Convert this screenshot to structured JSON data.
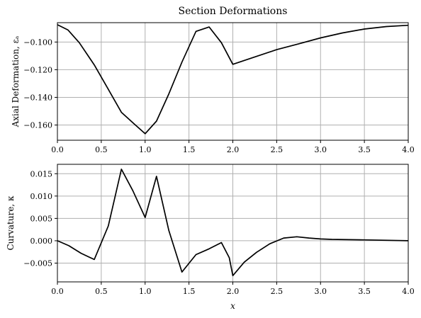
{
  "chart_data": [
    {
      "type": "line",
      "title": "Section Deformations",
      "xlabel": "",
      "ylabel": "Axial Deformation, εₐ",
      "xlim": [
        0,
        4
      ],
      "ylim": [
        -0.171,
        -0.086
      ],
      "xticks": [
        0,
        0.5,
        1,
        1.5,
        2,
        2.5,
        3,
        3.5,
        4
      ],
      "xtick_labels": [
        "0.0",
        "0.5",
        "1.0",
        "1.5",
        "2.0",
        "2.5",
        "3.0",
        "3.5",
        "4.0"
      ],
      "yticks": [
        -0.16,
        -0.14,
        -0.12,
        -0.1
      ],
      "ytick_labels": [
        "−0.160",
        "−0.140",
        "−0.120",
        "−0.100"
      ],
      "grid": true,
      "line_color": "#000000",
      "x": [
        0,
        0.12,
        0.25,
        0.42,
        0.58,
        0.73,
        0.88,
        1.0,
        1.13,
        1.27,
        1.42,
        1.58,
        1.73,
        1.87,
        2.0,
        2.25,
        2.5,
        2.75,
        3.0,
        3.25,
        3.5,
        3.75,
        4.0
      ],
      "y": [
        -0.0875,
        -0.0912,
        -0.1005,
        -0.1165,
        -0.1342,
        -0.1508,
        -0.1595,
        -0.1663,
        -0.1572,
        -0.1375,
        -0.1145,
        -0.0923,
        -0.0891,
        -0.1005,
        -0.1161,
        -0.1108,
        -0.1055,
        -0.1013,
        -0.097,
        -0.0934,
        -0.0906,
        -0.0888,
        -0.0879
      ]
    },
    {
      "type": "line",
      "title": "",
      "xlabel": "x",
      "ylabel": "Curvature, κ",
      "xlim": [
        0,
        4
      ],
      "ylim": [
        -0.0092,
        0.0171
      ],
      "xticks": [
        0,
        0.5,
        1,
        1.5,
        2,
        2.5,
        3,
        3.5,
        4
      ],
      "xtick_labels": [
        "0.0",
        "0.5",
        "1.0",
        "1.5",
        "2.0",
        "2.5",
        "3.0",
        "3.5",
        "4.0"
      ],
      "yticks": [
        -0.005,
        0.0,
        0.005,
        0.01,
        0.015
      ],
      "ytick_labels": [
        "−0.005",
        "0.000",
        "0.005",
        "0.010",
        "0.015"
      ],
      "grid": true,
      "line_color": "#000000",
      "x": [
        0,
        0.13,
        0.27,
        0.42,
        0.58,
        0.73,
        0.86,
        1.0,
        1.13,
        1.27,
        1.42,
        1.58,
        1.73,
        1.87,
        1.96,
        2.0,
        2.13,
        2.27,
        2.42,
        2.58,
        2.73,
        2.87,
        3.0,
        3.13,
        3.5,
        4.0
      ],
      "y": [
        0.0,
        -0.0011,
        -0.0028,
        -0.0042,
        0.0033,
        0.016,
        0.0112,
        0.0052,
        0.0144,
        0.0023,
        -0.007,
        -0.0031,
        -0.0018,
        -0.0004,
        -0.0038,
        -0.0078,
        -0.0048,
        -0.0026,
        -0.0007,
        0.0006,
        0.0009,
        0.0006,
        0.0004,
        0.0003,
        0.0002,
        0.0
      ]
    }
  ]
}
